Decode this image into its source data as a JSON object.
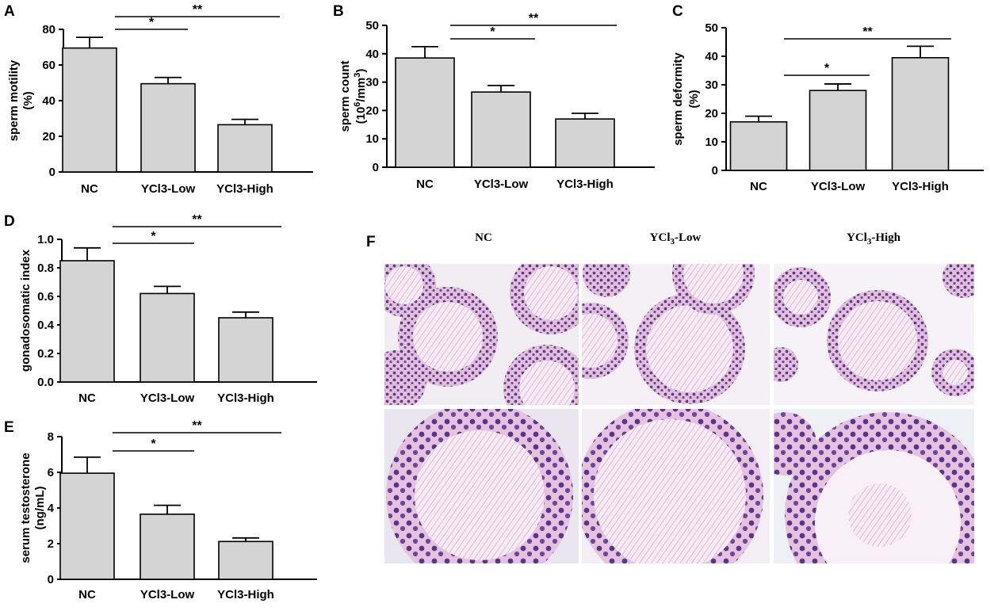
{
  "colors": {
    "bar_fill": "#d4d4d4",
    "bar_stroke": "#000000",
    "stain_background": "#f2ecf3",
    "tubule_fill": "#e7c6df",
    "nucleus": "#5b3d8c",
    "lumen": "#f8f0f6"
  },
  "chart_data": [
    {
      "type": "bar",
      "panel": "A",
      "categories": [
        "NC",
        "YCl3-Low",
        "YCl3-High"
      ],
      "values": [
        69.5,
        49.5,
        26.5
      ],
      "errors": [
        6,
        3.5,
        3
      ],
      "ylabel": "sperm motility",
      "ylabel_line2": "(%)",
      "ylim": [
        0,
        80
      ],
      "yticks": [
        "0",
        "20",
        "40",
        "60",
        "80"
      ],
      "significance": [
        {
          "from": 0,
          "to": 1,
          "label": "*"
        },
        {
          "from": 0,
          "to": 2,
          "label": "**"
        }
      ]
    },
    {
      "type": "bar",
      "panel": "B",
      "categories": [
        "NC",
        "YCl3-Low",
        "YCl3-High"
      ],
      "values": [
        38.5,
        26.5,
        17
      ],
      "errors": [
        4,
        2.3,
        2
      ],
      "ylabel": "sperm count",
      "ylabel_line2": "(10^6/mm^3)",
      "ylim": [
        0,
        50
      ],
      "yticks": [
        "0",
        "10",
        "20",
        "30",
        "40",
        "50"
      ],
      "significance": [
        {
          "from": 0,
          "to": 1,
          "label": "*"
        },
        {
          "from": 0,
          "to": 2,
          "label": "**"
        }
      ]
    },
    {
      "type": "bar",
      "panel": "C",
      "categories": [
        "NC",
        "YCl3-Low",
        "YCl3-High"
      ],
      "values": [
        17,
        28,
        39.5
      ],
      "errors": [
        2,
        2.3,
        4
      ],
      "ylabel": "sperm deformity",
      "ylabel_line2": "(%)",
      "ylim": [
        0,
        50
      ],
      "yticks": [
        "0",
        "10",
        "20",
        "30",
        "40",
        "50"
      ],
      "significance": [
        {
          "from": 0,
          "to": 1,
          "label": "*"
        },
        {
          "from": 0,
          "to": 2,
          "label": "**"
        }
      ]
    },
    {
      "type": "bar",
      "panel": "D",
      "categories": [
        "NC",
        "YCl3-Low",
        "YCl3-High"
      ],
      "values": [
        0.85,
        0.62,
        0.45
      ],
      "errors": [
        0.09,
        0.05,
        0.04
      ],
      "ylabel": "gonadosomatic index",
      "ylabel_line2": "",
      "ylim": [
        0,
        1.0
      ],
      "yticks": [
        "0.0",
        "0.2",
        "0.4",
        "0.6",
        "0.8",
        "1.0"
      ],
      "significance": [
        {
          "from": 0,
          "to": 1,
          "label": "*"
        },
        {
          "from": 0,
          "to": 2,
          "label": "**"
        }
      ]
    },
    {
      "type": "bar",
      "panel": "E",
      "categories": [
        "NC",
        "YCl3-Low",
        "YCl3-High"
      ],
      "values": [
        5.95,
        3.65,
        2.12
      ],
      "errors": [
        0.9,
        0.5,
        0.2
      ],
      "ylabel": "serum testosterone",
      "ylabel_line2": "(ng/mL)",
      "ylim": [
        0,
        8
      ],
      "yticks": [
        "0",
        "2",
        "4",
        "6",
        "8"
      ],
      "significance": [
        {
          "from": 0,
          "to": 1,
          "label": "*"
        },
        {
          "from": 0,
          "to": 2,
          "label": "**"
        }
      ]
    }
  ],
  "histology": {
    "panel": "F",
    "column_titles": [
      {
        "main": "NC",
        "sub": "",
        "rest": ""
      },
      {
        "main": "YCl",
        "sub": "3",
        "rest": "-Low"
      },
      {
        "main": "YCl",
        "sub": "3",
        "rest": "-High"
      }
    ]
  }
}
